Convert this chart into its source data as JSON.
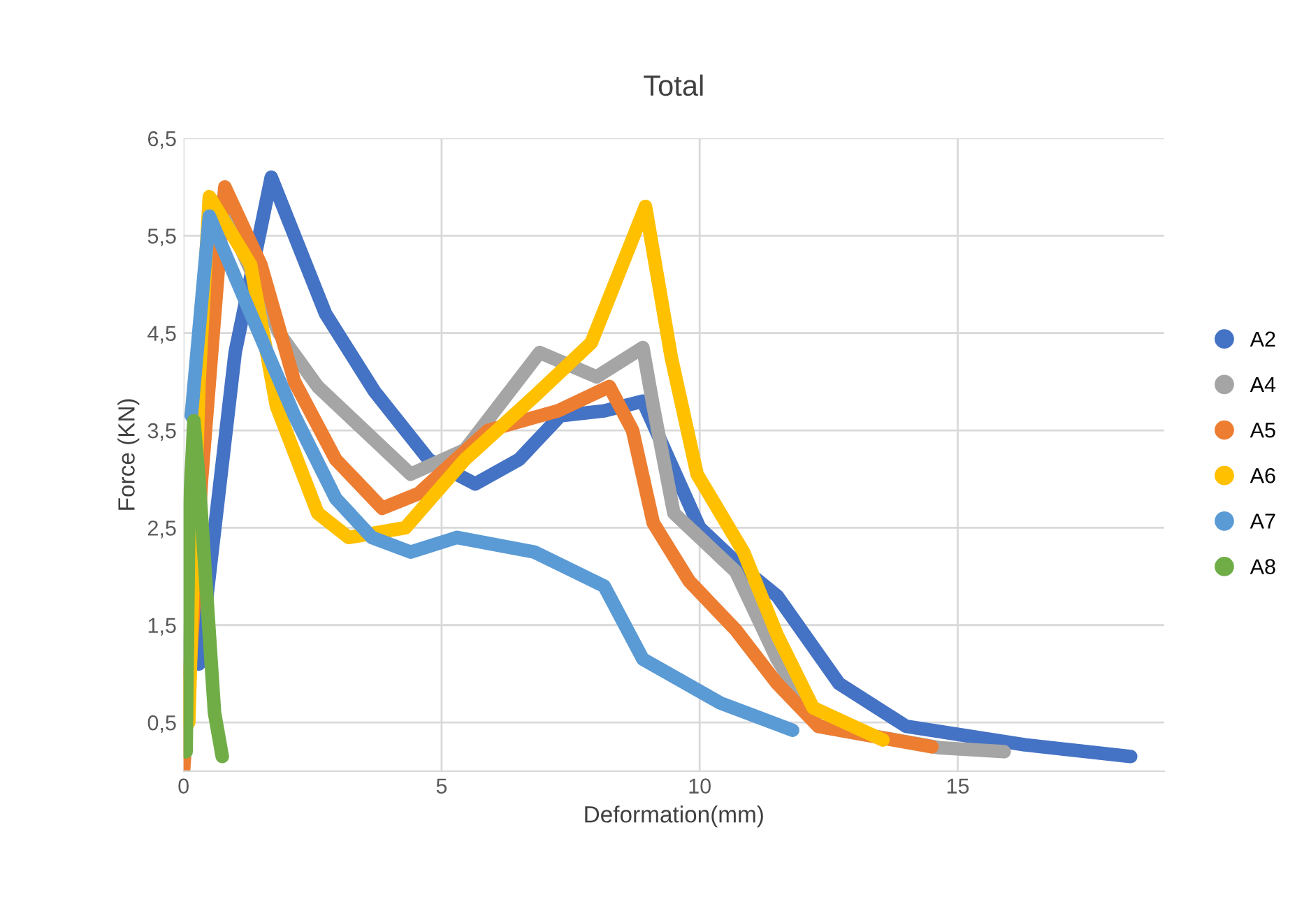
{
  "chart_data": {
    "type": "line",
    "title": "Total",
    "xlabel": "Deformation(mm)",
    "ylabel": "Force (KN)",
    "xlim": [
      0,
      19
    ],
    "xticks": [
      0,
      5,
      10,
      15
    ],
    "ylim": [
      0,
      6.5
    ],
    "yticks": [
      {
        "value": 0.5,
        "label": "0,5"
      },
      {
        "value": 1.5,
        "label": "1,5"
      },
      {
        "value": 2.5,
        "label": "2,5"
      },
      {
        "value": 3.5,
        "label": "3,5"
      },
      {
        "value": 4.5,
        "label": "4,5"
      },
      {
        "value": 5.5,
        "label": "5,5"
      },
      {
        "value": 6.5,
        "label": "6,5"
      }
    ],
    "grid": true,
    "legend": "right",
    "series": [
      {
        "name": "A2",
        "color": "#4472c4",
        "x": [
          0.3,
          1.0,
          1.7,
          2.75,
          3.7,
          4.75,
          5.65,
          6.5,
          7.3,
          8.15,
          8.9,
          10.0,
          10.8,
          11.5,
          12.7,
          14.0,
          16.3,
          18.35
        ],
        "values": [
          1.1,
          4.3,
          6.1,
          4.7,
          3.9,
          3.2,
          2.95,
          3.2,
          3.65,
          3.7,
          3.8,
          2.5,
          2.1,
          1.8,
          0.9,
          0.46,
          0.27,
          0.15
        ]
      },
      {
        "name": "A4",
        "color": "#a5a5a5",
        "x": [
          0.1,
          0.35,
          0.7,
          1.85,
          2.6,
          3.2,
          4.4,
          5.45,
          6.9,
          8.0,
          8.9,
          9.1,
          9.5,
          10.7,
          11.5,
          12.3,
          14.65,
          15.9
        ],
        "values": [
          1.0,
          4.5,
          5.85,
          4.5,
          3.95,
          3.65,
          3.05,
          3.3,
          4.3,
          4.05,
          4.35,
          3.75,
          2.65,
          2.05,
          1.15,
          0.46,
          0.24,
          0.2
        ]
      },
      {
        "name": "A5",
        "color": "#ed7d31",
        "x": [
          0.0,
          0.35,
          0.8,
          1.5,
          2.15,
          2.95,
          3.85,
          4.55,
          5.9,
          7.25,
          8.25,
          8.7,
          9.1,
          9.8,
          10.7,
          11.5,
          12.3,
          14.5
        ],
        "values": [
          0.0,
          3.0,
          6.0,
          5.2,
          4.0,
          3.2,
          2.7,
          2.85,
          3.5,
          3.7,
          3.95,
          3.5,
          2.55,
          1.95,
          1.45,
          0.9,
          0.46,
          0.25
        ]
      },
      {
        "name": "A6",
        "color": "#ffc000",
        "x": [
          0.1,
          0.3,
          0.5,
          1.3,
          1.8,
          2.6,
          3.2,
          4.3,
          5.45,
          6.8,
          7.9,
          8.95,
          9.45,
          9.95,
          10.85,
          11.5,
          12.2,
          13.55
        ],
        "values": [
          0.5,
          4.0,
          5.9,
          5.2,
          3.75,
          2.65,
          2.4,
          2.5,
          3.2,
          3.85,
          4.4,
          5.8,
          4.25,
          3.05,
          2.25,
          1.4,
          0.65,
          0.32
        ]
      },
      {
        "name": "A7",
        "color": "#5b9bd5",
        "x": [
          0.15,
          0.5,
          1.3,
          2.15,
          2.95,
          3.65,
          4.4,
          5.3,
          6.8,
          8.15,
          8.9,
          10.4,
          11.8
        ],
        "values": [
          3.65,
          5.7,
          4.7,
          3.65,
          2.8,
          2.4,
          2.25,
          2.4,
          2.25,
          1.9,
          1.15,
          0.7,
          0.42
        ]
      },
      {
        "name": "A8",
        "color": "#70ad47",
        "x": [
          0.05,
          0.1,
          0.2,
          0.3,
          0.45,
          0.6,
          0.75
        ],
        "values": [
          0.2,
          2.5,
          3.6,
          3.0,
          1.8,
          0.6,
          0.15
        ]
      }
    ]
  }
}
